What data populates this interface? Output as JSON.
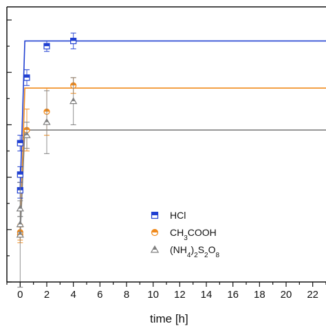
{
  "chart_data": {
    "type": "scatter",
    "xlabel": "time [h]",
    "ylabel": "",
    "xlim": [
      -1,
      23
    ],
    "ylim": [
      0,
      1.05
    ],
    "x_ticks": [
      0,
      2,
      4,
      6,
      8,
      10,
      12,
      14,
      16,
      18,
      20,
      22
    ],
    "grid": false,
    "legend_position": "lower-center",
    "series": [
      {
        "name": "HCl",
        "legend_label": "HCl",
        "color": "#1f3fd1",
        "marker": "square-half-filled",
        "fit_plateau": 0.92,
        "points": [
          {
            "x": 0,
            "y": 0.35,
            "err": 0.03
          },
          {
            "x": 0,
            "y": 0.41,
            "err": 0.03
          },
          {
            "x": 0,
            "y": 0.53,
            "err": 0.03
          },
          {
            "x": 0.5,
            "y": 0.78,
            "err": 0.03
          },
          {
            "x": 2,
            "y": 0.9,
            "err": 0.02
          },
          {
            "x": 4,
            "y": 0.92,
            "err": 0.03
          }
        ]
      },
      {
        "name": "CH3COOH",
        "legend_label": "CH3COOH",
        "legend_parts": [
          [
            "CH",
            false
          ],
          [
            "3",
            true
          ],
          [
            "COOH",
            false
          ]
        ],
        "color": "#f08a1c",
        "marker": "circle-half-filled",
        "fit_plateau": 0.74,
        "points": [
          {
            "x": 0,
            "y": 0.18,
            "err": 0.03
          },
          {
            "x": 0,
            "y": 0.19,
            "err": 0.03
          },
          {
            "x": 0.5,
            "y": 0.58,
            "err": 0.08
          },
          {
            "x": 2,
            "y": 0.65,
            "err": 0.09
          },
          {
            "x": 4,
            "y": 0.75,
            "err": 0.03
          }
        ]
      },
      {
        "name": "(NH4)2S2O8",
        "legend_label": "(NH4)2S2O8",
        "legend_parts": [
          [
            "(NH",
            false
          ],
          [
            "4",
            true
          ],
          [
            ")",
            false
          ],
          [
            "2",
            true
          ],
          [
            "S",
            false
          ],
          [
            "2",
            true
          ],
          [
            "O",
            false
          ],
          [
            "8",
            true
          ]
        ],
        "color": "#7f7f7f",
        "marker": "triangle",
        "fit_plateau": 0.58,
        "points": [
          {
            "x": 0,
            "y": 0.18,
            "err": 0.2
          },
          {
            "x": 0,
            "y": 0.22,
            "err": 0.03
          },
          {
            "x": 0,
            "y": 0.28,
            "err": 0.03
          },
          {
            "x": 0.5,
            "y": 0.56,
            "err": 0.05
          },
          {
            "x": 2,
            "y": 0.61,
            "err": 0.12
          },
          {
            "x": 4,
            "y": 0.69,
            "err": 0.09
          }
        ]
      }
    ]
  }
}
